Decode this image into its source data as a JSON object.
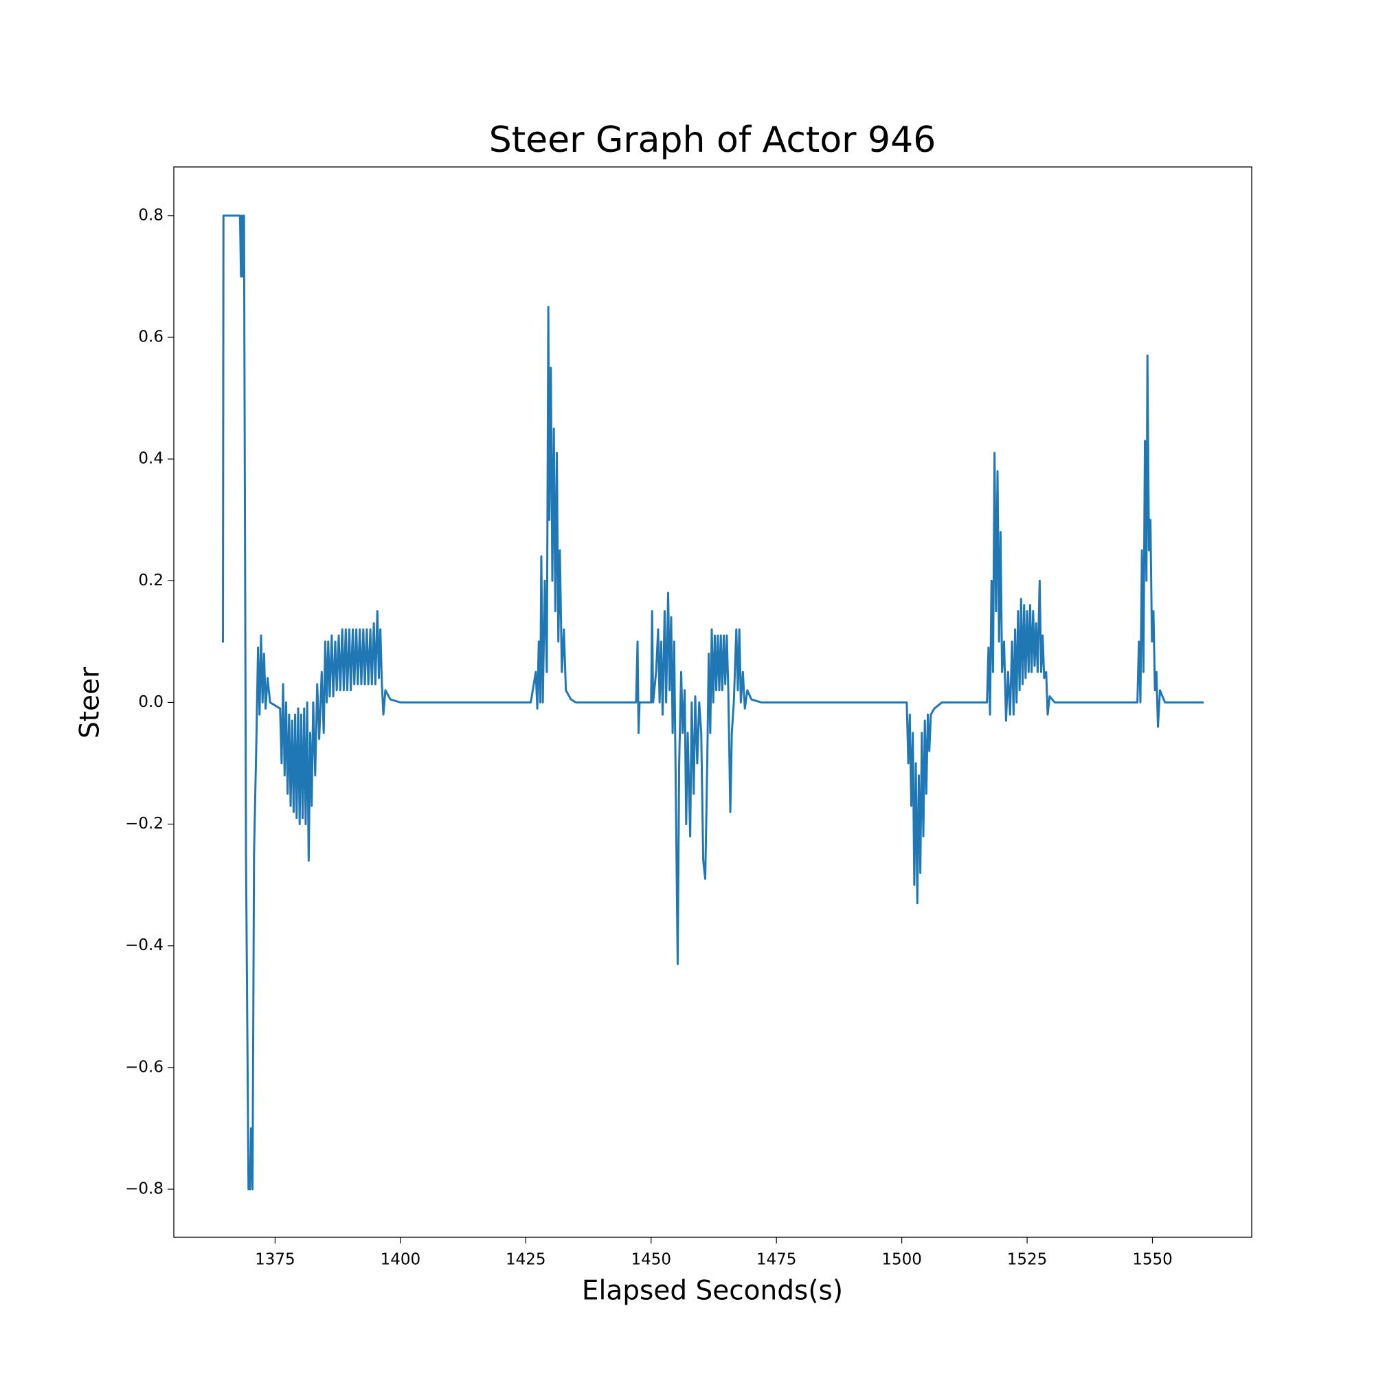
{
  "chart_data": {
    "type": "line",
    "title": "Steer Graph of Actor 946",
    "x_label": "Elapsed Seconds(s)",
    "y_label": "Steer",
    "color": "#1f77b4",
    "xlim": [
      1354.8,
      1569.8
    ],
    "ylim": [
      -0.879,
      0.88
    ],
    "xticks": [
      1375,
      1400,
      1425,
      1450,
      1475,
      1500,
      1525,
      1550
    ],
    "yticks": [
      {
        "value": -0.8,
        "label": "−0.8"
      },
      {
        "value": -0.6,
        "label": "−0.6"
      },
      {
        "value": -0.4,
        "label": "−0.4"
      },
      {
        "value": -0.2,
        "label": "−0.2"
      },
      {
        "value": 0,
        "label": "0.0"
      },
      0.2,
      0.4,
      0.6,
      0.8
    ],
    "x": [
      1364.6,
      1364.7,
      1368.0,
      1368.2,
      1368.4,
      1368.6,
      1368.8,
      1369.2,
      1369.7,
      1370.0,
      1370.2,
      1370.5,
      1370.8,
      1371.3,
      1371.6,
      1371.9,
      1372.2,
      1372.5,
      1372.8,
      1373.1,
      1373.5,
      1374.0,
      1376.0,
      1376.3,
      1376.6,
      1376.9,
      1377.2,
      1377.5,
      1377.8,
      1378.1,
      1378.4,
      1378.7,
      1379.0,
      1379.3,
      1379.6,
      1379.9,
      1380.2,
      1380.5,
      1380.8,
      1381.1,
      1381.4,
      1381.7,
      1382.0,
      1382.3,
      1382.6,
      1383.0,
      1383.4,
      1383.8,
      1384.3,
      1384.7,
      1385.0,
      1385.3,
      1385.6,
      1385.9,
      1386.3,
      1386.6,
      1387.0,
      1387.3,
      1387.7,
      1388.0,
      1388.4,
      1388.7,
      1389.1,
      1389.4,
      1389.8,
      1390.1,
      1390.5,
      1390.8,
      1391.2,
      1391.5,
      1391.9,
      1392.2,
      1392.6,
      1392.9,
      1393.3,
      1393.6,
      1394.0,
      1394.3,
      1394.7,
      1395.0,
      1395.4,
      1395.7,
      1396.0,
      1396.3,
      1396.6,
      1397.0,
      1398.0,
      1400.0,
      1425.0,
      1426.0,
      1427.0,
      1427.3,
      1427.6,
      1427.9,
      1428.1,
      1428.4,
      1428.8,
      1429.2,
      1429.5,
      1429.7,
      1430.0,
      1430.3,
      1430.6,
      1430.9,
      1431.2,
      1431.5,
      1431.8,
      1432.2,
      1432.6,
      1433.0,
      1434.0,
      1435.0,
      1447.0,
      1447.3,
      1447.5,
      1447.7,
      1450.0,
      1450.2,
      1450.4,
      1451.0,
      1451.4,
      1451.7,
      1452.0,
      1452.3,
      1452.7,
      1453.0,
      1453.4,
      1453.7,
      1454.0,
      1454.3,
      1454.6,
      1455.0,
      1455.3,
      1455.6,
      1456.0,
      1456.3,
      1456.7,
      1457.0,
      1457.3,
      1457.8,
      1458.1,
      1458.5,
      1458.8,
      1459.2,
      1459.6,
      1460.0,
      1460.4,
      1460.8,
      1461.2,
      1461.5,
      1461.8,
      1462.1,
      1462.4,
      1462.7,
      1463.0,
      1463.3,
      1463.6,
      1463.9,
      1464.2,
      1464.5,
      1464.8,
      1465.1,
      1465.4,
      1465.8,
      1466.1,
      1466.5,
      1467.0,
      1467.3,
      1467.6,
      1467.9,
      1468.3,
      1468.7,
      1469.2,
      1470.0,
      1472.0,
      1501.0,
      1501.3,
      1501.6,
      1501.9,
      1502.2,
      1502.5,
      1502.8,
      1503.1,
      1503.4,
      1503.7,
      1504.0,
      1504.3,
      1504.6,
      1504.9,
      1505.2,
      1505.5,
      1505.8,
      1506.5,
      1508.0,
      1517.0,
      1517.3,
      1517.6,
      1517.9,
      1518.2,
      1518.5,
      1518.8,
      1519.1,
      1519.4,
      1519.7,
      1520.0,
      1520.4,
      1520.8,
      1521.2,
      1521.6,
      1522.0,
      1522.3,
      1522.6,
      1522.9,
      1523.2,
      1523.5,
      1523.8,
      1524.1,
      1524.4,
      1524.7,
      1525.0,
      1525.3,
      1525.6,
      1525.9,
      1526.2,
      1526.5,
      1526.8,
      1527.1,
      1527.5,
      1527.8,
      1528.1,
      1528.4,
      1528.8,
      1529.1,
      1529.5,
      1530.5,
      1547.0,
      1547.3,
      1547.6,
      1547.9,
      1548.2,
      1548.5,
      1548.8,
      1549.0,
      1549.3,
      1549.6,
      1549.9,
      1550.2,
      1550.5,
      1550.8,
      1551.1,
      1551.5,
      1552.5,
      1560.0
    ],
    "values": [
      0.1,
      0.8,
      0.8,
      0.7,
      0.8,
      0.7,
      0.8,
      -0.25,
      -0.8,
      -0.8,
      -0.7,
      -0.8,
      -0.25,
      -0.05,
      0.09,
      -0.02,
      0.11,
      0.0,
      0.08,
      -0.01,
      0.04,
      0.0,
      -0.01,
      -0.1,
      0.03,
      -0.12,
      0.0,
      -0.15,
      -0.02,
      -0.17,
      -0.03,
      -0.18,
      -0.02,
      -0.19,
      -0.01,
      -0.2,
      -0.02,
      -0.19,
      -0.01,
      -0.2,
      0.0,
      -0.26,
      -0.05,
      -0.17,
      0.0,
      -0.12,
      0.03,
      -0.06,
      0.05,
      -0.05,
      0.1,
      0.0,
      0.1,
      0.01,
      0.11,
      0.01,
      0.1,
      0.02,
      0.11,
      0.02,
      0.12,
      0.02,
      0.12,
      0.02,
      0.12,
      0.02,
      0.12,
      0.03,
      0.12,
      0.03,
      0.12,
      0.03,
      0.12,
      0.03,
      0.12,
      0.03,
      0.12,
      0.03,
      0.13,
      0.03,
      0.15,
      0.04,
      0.12,
      0.03,
      -0.02,
      0.02,
      0.005,
      0.0,
      0.0,
      0.0,
      0.05,
      -0.01,
      0.1,
      0.0,
      0.24,
      0.0,
      0.2,
      0.05,
      0.65,
      0.3,
      0.55,
      0.2,
      0.45,
      0.15,
      0.41,
      0.1,
      0.25,
      0.05,
      0.12,
      0.02,
      0.005,
      0.0,
      0.0,
      0.1,
      -0.05,
      0.0,
      0.0,
      0.15,
      0.0,
      0.05,
      0.12,
      0.0,
      0.1,
      -0.02,
      0.15,
      0.0,
      0.18,
      0.02,
      0.14,
      -0.05,
      0.1,
      -0.2,
      -0.43,
      -0.1,
      0.05,
      -0.05,
      0.02,
      -0.2,
      -0.05,
      -0.22,
      0.0,
      -0.15,
      0.01,
      -0.1,
      0.0,
      -0.05,
      -0.26,
      -0.29,
      -0.1,
      0.08,
      -0.05,
      0.12,
      0.0,
      0.11,
      0.02,
      0.11,
      0.02,
      0.11,
      0.02,
      0.11,
      0.03,
      0.11,
      0.02,
      -0.18,
      -0.05,
      0.0,
      0.12,
      0.02,
      0.12,
      0.0,
      0.05,
      -0.01,
      0.02,
      0.005,
      0.0,
      0.0,
      -0.1,
      -0.02,
      -0.17,
      -0.05,
      -0.3,
      -0.1,
      -0.33,
      -0.12,
      -0.28,
      -0.05,
      -0.22,
      -0.03,
      -0.15,
      -0.02,
      -0.08,
      -0.02,
      -0.01,
      0.0,
      0.0,
      0.09,
      -0.02,
      0.2,
      0.05,
      0.41,
      0.15,
      0.38,
      0.1,
      0.28,
      0.05,
      0.1,
      -0.03,
      0.05,
      -0.02,
      0.1,
      -0.02,
      0.12,
      0.0,
      0.15,
      0.02,
      0.17,
      0.03,
      0.16,
      0.04,
      0.15,
      0.05,
      0.16,
      0.05,
      0.15,
      0.06,
      0.13,
      0.05,
      0.2,
      0.05,
      0.11,
      0.04,
      0.05,
      -0.02,
      0.01,
      0.0,
      0.0,
      0.1,
      0.0,
      0.25,
      0.05,
      0.43,
      0.2,
      0.57,
      0.25,
      0.3,
      0.1,
      0.15,
      0.02,
      0.05,
      -0.04,
      0.02,
      0.0,
      0.0
    ]
  }
}
